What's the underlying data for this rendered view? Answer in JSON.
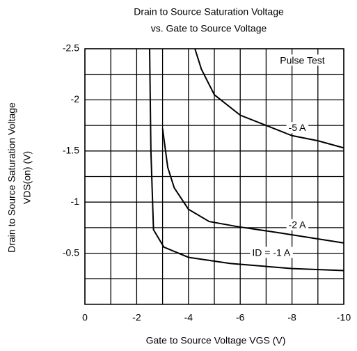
{
  "chart_data": {
    "type": "line",
    "title": "Drain to Source Saturation Voltage",
    "subtitle": "vs. Gate to Source Voltage",
    "xlabel": "Gate to Source Voltage VGS (V)",
    "ylabel": "Drain to Source Saturation Voltage",
    "ylabel2": "VDS(on) (V)",
    "annotation": "Pulse Test",
    "xlim": [
      0,
      -10
    ],
    "xticks": [
      0,
      -2,
      -4,
      -6,
      -8,
      -10
    ],
    "ylim": [
      0,
      -2.5
    ],
    "yticks": [
      -0.5,
      -1,
      -1.5,
      -2,
      -2.5
    ],
    "grid": true,
    "series": [
      {
        "name": "-5 A",
        "color": "#000000",
        "x": [
          -4.25,
          -4.5,
          -5,
          -6,
          -7,
          -8,
          -9,
          -10
        ],
        "values": [
          -2.5,
          -2.3,
          -2.05,
          -1.85,
          -1.75,
          -1.65,
          -1.6,
          -1.53
        ]
      },
      {
        "name": "-2 A",
        "color": "#000000",
        "x": [
          -3.0,
          -3.2,
          -3.45,
          -4,
          -4.8,
          -5.9,
          -7.5,
          -10
        ],
        "values": [
          -1.72,
          -1.34,
          -1.14,
          -0.93,
          -0.81,
          -0.76,
          -0.7,
          -0.6
        ]
      },
      {
        "name": "ID = -1 A",
        "color": "#000000",
        "x": [
          -2.5,
          -2.55,
          -2.65,
          -3.05,
          -4,
          -5.6,
          -8,
          -10
        ],
        "values": [
          -2.5,
          -1.5,
          -0.73,
          -0.56,
          -0.46,
          -0.4,
          -0.35,
          -0.33
        ]
      }
    ]
  }
}
